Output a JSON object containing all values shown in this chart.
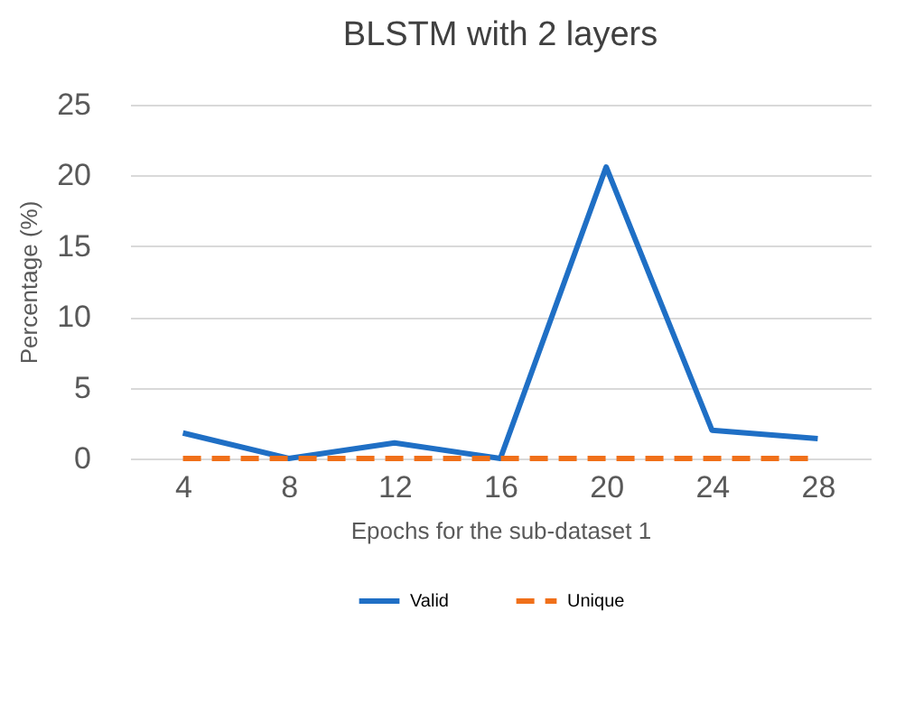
{
  "chart_data": {
    "type": "line",
    "title": "BLSTM with 2 layers",
    "xlabel": "Epochs for the sub-dataset 1",
    "ylabel": "Percentage (%)",
    "categories": [
      "4",
      "8",
      "12",
      "16",
      "20",
      "24",
      "28"
    ],
    "series": [
      {
        "name": "Valid",
        "color": "#1f6fc5",
        "line_style": "solid",
        "values": [
          1.8,
          0,
          1.1,
          0,
          20.6,
          2.0,
          1.4
        ]
      },
      {
        "name": "Unique",
        "color": "#f0701a",
        "line_style": "dashed",
        "values": [
          0,
          0,
          0,
          0,
          0,
          0,
          0
        ]
      }
    ],
    "ylim": [
      0,
      25
    ],
    "yticks": [
      0,
      5,
      10,
      15,
      20,
      25
    ],
    "grid": "y",
    "legend": "bottom",
    "marker": "none"
  }
}
